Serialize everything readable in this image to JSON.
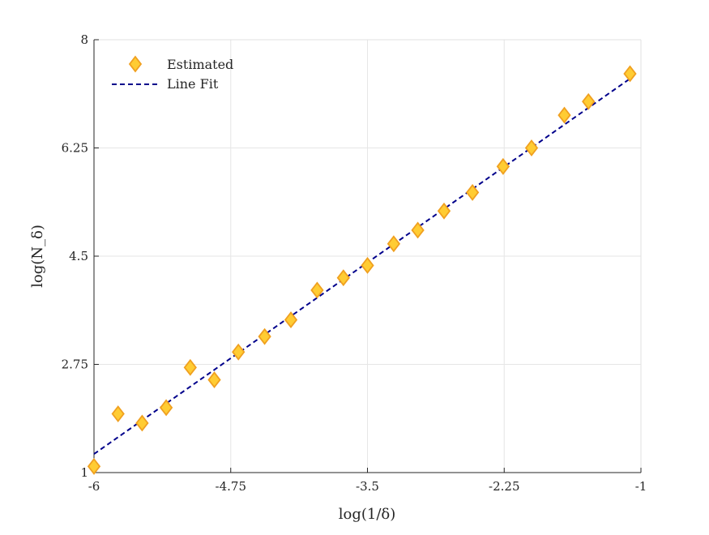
{
  "chart_data": {
    "type": "scatter",
    "title": "",
    "xlabel": "log(1/δ)",
    "ylabel": "log(N_δ)",
    "xlim": [
      -6,
      -1
    ],
    "ylim": [
      1,
      8
    ],
    "x_ticks": [
      -6,
      -4.75,
      -3.5,
      -2.25,
      -1
    ],
    "x_tick_labels": [
      "-6",
      "-4.75",
      "-3.5",
      "-2.25",
      "-1"
    ],
    "y_ticks": [
      1,
      2.75,
      4.5,
      6.25,
      8
    ],
    "y_tick_labels": [
      "1",
      "2.75",
      "4.5",
      "6.25",
      "8"
    ],
    "grid": true,
    "legend_position": "top-left",
    "series": [
      {
        "name": "Estimated",
        "kind": "marker",
        "marker": "diamond",
        "color": "#FFCC33",
        "edge_color": "#F0A020",
        "x": [
          -6.0,
          -5.78,
          -5.56,
          -5.34,
          -5.12,
          -4.9,
          -4.68,
          -4.44,
          -4.2,
          -3.96,
          -3.72,
          -3.5,
          -3.26,
          -3.04,
          -2.8,
          -2.54,
          -2.26,
          -2.0,
          -1.7,
          -1.48,
          -1.1
        ],
        "y": [
          1.1,
          1.95,
          1.8,
          2.05,
          2.7,
          2.5,
          2.95,
          3.2,
          3.47,
          3.95,
          4.15,
          4.35,
          4.7,
          4.92,
          5.23,
          5.53,
          5.95,
          6.25,
          6.78,
          7.0,
          7.45
        ]
      },
      {
        "name": "Line Fit",
        "kind": "line",
        "style": "dashed",
        "color": "#00008B",
        "x": [
          -6.0,
          -1.1
        ],
        "y": [
          1.3,
          7.37
        ]
      }
    ]
  }
}
